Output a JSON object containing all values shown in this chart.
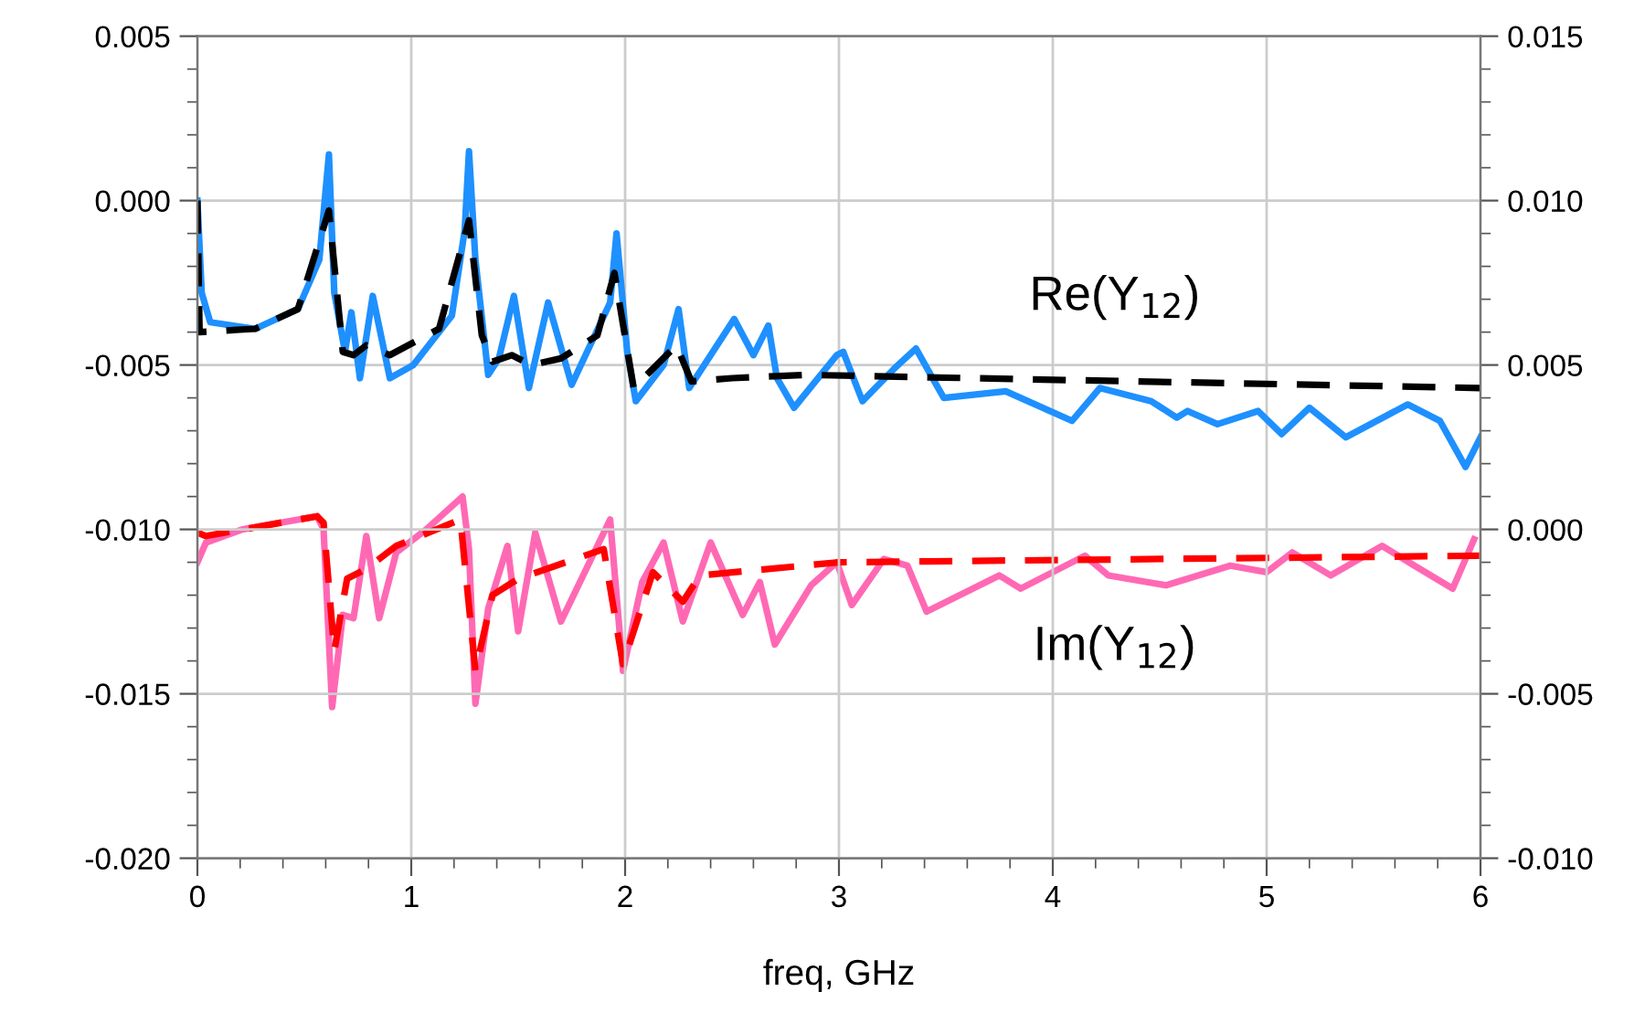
{
  "chart_data": {
    "type": "line",
    "xlabel": "freq, GHz",
    "grid": true,
    "legend": false,
    "marker": "none",
    "xlim": [
      0,
      6
    ],
    "ylim": [
      -0.02,
      0.005
    ],
    "y2lim": [
      -0.01,
      0.015
    ],
    "xticks": [
      0,
      {
        "value": 0.2,
        "label": null
      },
      {
        "value": 0.4,
        "label": null
      },
      {
        "value": 0.6,
        "label": null
      },
      {
        "value": 0.8,
        "label": null
      },
      1,
      {
        "value": 1.2,
        "label": null
      },
      {
        "value": 1.4,
        "label": null
      },
      {
        "value": 1.6,
        "label": null
      },
      {
        "value": 1.8,
        "label": null
      },
      2,
      {
        "value": 2.2,
        "label": null
      },
      {
        "value": 2.4,
        "label": null
      },
      {
        "value": 2.6,
        "label": null
      },
      {
        "value": 2.8,
        "label": null
      },
      3,
      {
        "value": 3.2,
        "label": null
      },
      {
        "value": 3.4,
        "label": null
      },
      {
        "value": 3.6,
        "label": null
      },
      {
        "value": 3.8,
        "label": null
      },
      4,
      {
        "value": 4.2,
        "label": null
      },
      {
        "value": 4.4,
        "label": null
      },
      {
        "value": 4.6,
        "label": null
      },
      {
        "value": 4.8,
        "label": null
      },
      5,
      {
        "value": 5.2,
        "label": null
      },
      {
        "value": 5.4,
        "label": null
      },
      {
        "value": 5.6,
        "label": null
      },
      {
        "value": 5.8,
        "label": null
      },
      6
    ],
    "yticks": [
      {
        "value": -0.02,
        "label": "-0.020"
      },
      {
        "value": -0.019,
        "label": null
      },
      {
        "value": -0.018,
        "label": null
      },
      {
        "value": -0.017,
        "label": null
      },
      {
        "value": -0.016,
        "label": null
      },
      {
        "value": -0.015,
        "label": "-0.015"
      },
      {
        "value": -0.014,
        "label": null
      },
      {
        "value": -0.013,
        "label": null
      },
      {
        "value": -0.012,
        "label": null
      },
      {
        "value": -0.011,
        "label": null
      },
      {
        "value": -0.01,
        "label": "-0.010"
      },
      {
        "value": -0.009,
        "label": null
      },
      {
        "value": -0.008,
        "label": null
      },
      {
        "value": -0.007,
        "label": null
      },
      {
        "value": -0.006,
        "label": null
      },
      {
        "value": -0.005,
        "label": "-0.005"
      },
      {
        "value": -0.004,
        "label": null
      },
      {
        "value": -0.003,
        "label": null
      },
      {
        "value": -0.002,
        "label": null
      },
      {
        "value": -0.001,
        "label": null
      },
      {
        "value": 0,
        "label": "0.000"
      },
      {
        "value": 0.001,
        "label": null
      },
      {
        "value": 0.002,
        "label": null
      },
      {
        "value": 0.003,
        "label": null
      },
      {
        "value": 0.004,
        "label": null
      },
      {
        "value": 0.005,
        "label": "0.005"
      }
    ],
    "y2ticks": [
      {
        "value": -0.01,
        "label": "-0.010"
      },
      {
        "value": -0.009,
        "label": null
      },
      {
        "value": -0.008,
        "label": null
      },
      {
        "value": -0.007,
        "label": null
      },
      {
        "value": -0.006,
        "label": null
      },
      {
        "value": -0.005,
        "label": "-0.005"
      },
      {
        "value": -0.004,
        "label": null
      },
      {
        "value": -0.003,
        "label": null
      },
      {
        "value": -0.002,
        "label": null
      },
      {
        "value": -0.001,
        "label": null
      },
      {
        "value": 0,
        "label": "0.000"
      },
      {
        "value": 0.001,
        "label": null
      },
      {
        "value": 0.002,
        "label": null
      },
      {
        "value": 0.003,
        "label": null
      },
      {
        "value": 0.004,
        "label": null
      },
      {
        "value": 0.005,
        "label": "0.005"
      },
      {
        "value": 0.006,
        "label": null
      },
      {
        "value": 0.007,
        "label": null
      },
      {
        "value": 0.008,
        "label": null
      },
      {
        "value": 0.009,
        "label": null
      },
      {
        "value": 0.01,
        "label": "0.010"
      },
      {
        "value": 0.011,
        "label": null
      },
      {
        "value": 0.012,
        "label": null
      },
      {
        "value": 0.013,
        "label": null
      },
      {
        "value": 0.014,
        "label": null
      },
      {
        "value": 0.015,
        "label": "0.015"
      }
    ],
    "annotations": [
      "Re(Y$_{12}$)",
      "Im(Y$_{12}$)"
    ],
    "series": [
      {
        "color": "#1e90ff",
        "line_style": "solid",
        "x": [
          0,
          0.02,
          0.06,
          0.27,
          0.47,
          0.57,
          0.615,
          0.64,
          0.69,
          0.72,
          0.76,
          0.82,
          0.9,
          1.01,
          1.19,
          1.25,
          1.27,
          1.3,
          1.36,
          1.41,
          1.48,
          1.55,
          1.64,
          1.75,
          1.93,
          1.96,
          2.01,
          2.05,
          2.18,
          2.25,
          2.3,
          2.41,
          2.51,
          2.6,
          2.67,
          2.71,
          2.79,
          2.99,
          3.02,
          3.11,
          3.26,
          3.36,
          3.49,
          3.78,
          4.09,
          4.22,
          4.46,
          4.58,
          4.63,
          4.77,
          4.96,
          5.07,
          5.2,
          5.37,
          5.66,
          5.81,
          5.93,
          6.0
        ],
        "values": [
          0.0,
          -0.0028,
          -0.0037,
          -0.0039,
          -0.0033,
          -0.0018,
          0.0014,
          -0.0028,
          -0.0046,
          -0.0034,
          -0.0054,
          -0.0029,
          -0.0054,
          -0.005,
          -0.0035,
          -0.0009,
          0.0015,
          -0.0018,
          -0.0053,
          -0.0048,
          -0.0029,
          -0.0057,
          -0.0031,
          -0.0056,
          -0.0031,
          -0.001,
          -0.0046,
          -0.0061,
          -0.005,
          -0.0033,
          -0.0057,
          -0.0046,
          -0.0036,
          -0.0047,
          -0.0038,
          -0.0054,
          -0.0063,
          -0.0047,
          -0.0046,
          -0.0061,
          -0.0051,
          -0.0045,
          -0.006,
          -0.0058,
          -0.0067,
          -0.0057,
          -0.0061,
          -0.0066,
          -0.0064,
          -0.0068,
          -0.0064,
          -0.0071,
          -0.0063,
          -0.0072,
          -0.0062,
          -0.0067,
          -0.0081,
          -0.0072
        ]
      },
      {
        "color": "#000000",
        "line_style": "dashed",
        "x": [
          0,
          0.01,
          0.27,
          0.47,
          0.615,
          0.68,
          0.73,
          0.79,
          0.9,
          1.13,
          1.27,
          1.33,
          1.38,
          1.47,
          1.56,
          1.7,
          1.87,
          1.95,
          2.04,
          2.24,
          2.31,
          2.5,
          2.84,
          4.4,
          6.0
        ],
        "values": [
          0.0,
          -0.004,
          -0.0039,
          -0.0033,
          -0.0003,
          -0.0046,
          -0.0047,
          -0.0044,
          -0.0047,
          -0.0039,
          -0.0006,
          -0.0041,
          -0.0049,
          -0.0047,
          -0.005,
          -0.0048,
          -0.0041,
          -0.0022,
          -0.0057,
          -0.0044,
          -0.0055,
          -0.0054,
          -0.0053,
          -0.0055,
          -0.0057
        ]
      },
      {
        "color": "#ff69b4",
        "line_style": "solid",
        "axis": "y2",
        "x": [
          0,
          0.04,
          0.21,
          0.56,
          0.59,
          0.63,
          0.68,
          0.73,
          0.79,
          0.85,
          0.93,
          1.07,
          1.24,
          1.27,
          1.3,
          1.36,
          1.45,
          1.5,
          1.58,
          1.7,
          1.93,
          1.99,
          2.08,
          2.18,
          2.27,
          2.4,
          2.55,
          2.63,
          2.7,
          2.87,
          2.99,
          3.06,
          3.21,
          3.32,
          3.41,
          3.75,
          3.85,
          4.15,
          4.26,
          4.53,
          4.83,
          5.0,
          5.12,
          5.3,
          5.54,
          5.69,
          5.87,
          5.97
        ],
        "values": [
          -0.001,
          -0.0004,
          0.0,
          0.0004,
          0.0,
          -0.0054,
          -0.0026,
          -0.0027,
          -0.0002,
          -0.0027,
          -0.0007,
          0.0,
          0.001,
          -0.0006,
          -0.0053,
          -0.0024,
          -0.0005,
          -0.0031,
          -0.0001,
          -0.0028,
          0.0003,
          -0.0043,
          -0.0016,
          -0.0004,
          -0.0028,
          -0.0004,
          -0.0026,
          -0.0016,
          -0.0035,
          -0.0017,
          -0.001,
          -0.0023,
          -0.0009,
          -0.0011,
          -0.0025,
          -0.0014,
          -0.0018,
          -0.0008,
          -0.0014,
          -0.0017,
          -0.0011,
          -0.0013,
          -0.0007,
          -0.0014,
          -0.0005,
          -0.0011,
          -0.0018,
          -0.0003
        ]
      },
      {
        "color": "#ff0000",
        "line_style": "dashed",
        "axis": "y2",
        "x": [
          0,
          0.04,
          0.56,
          0.59,
          0.64,
          0.7,
          0.79,
          0.93,
          1.23,
          1.3,
          1.38,
          1.5,
          1.9,
          1.99,
          2.13,
          2.27,
          2.35,
          3.0,
          6.0
        ],
        "values": [
          -0.0001,
          -0.0002,
          0.0004,
          0.0002,
          -0.0037,
          -0.0015,
          -0.0012,
          -0.0005,
          0.0003,
          -0.0043,
          -0.002,
          -0.0015,
          -0.0006,
          -0.0041,
          -0.0013,
          -0.0022,
          -0.0014,
          -0.001,
          -0.0008
        ]
      }
    ]
  }
}
